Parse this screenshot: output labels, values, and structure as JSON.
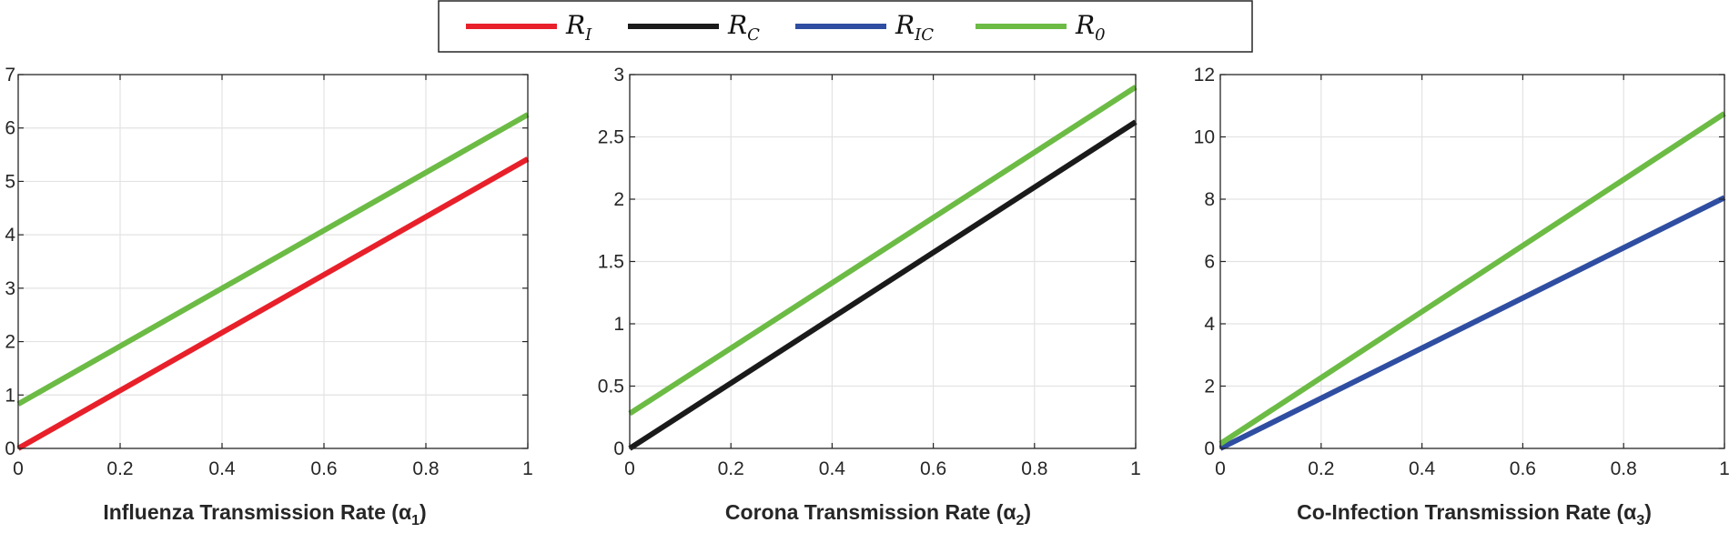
{
  "legend": {
    "entries": [
      {
        "key": "RI",
        "script": "R",
        "sub": "I",
        "color": "#e8202a"
      },
      {
        "key": "RC",
        "script": "R",
        "sub": "C",
        "color": "#1a1a1a"
      },
      {
        "key": "RIC",
        "script": "R",
        "sub": "IC",
        "color": "#2f4ea2"
      },
      {
        "key": "R0",
        "script": "R",
        "sub": "0",
        "color": "#6cbb45"
      }
    ]
  },
  "chart_data": [
    {
      "type": "line",
      "xlabel": "Influenza Transmission Rate (α",
      "xlabel_sub": "1",
      "xlabel_close": ")",
      "xlim": [
        0,
        1
      ],
      "ylim": [
        0,
        7
      ],
      "xticks": [
        0,
        0.2,
        0.4,
        0.6,
        0.8,
        1
      ],
      "xtick_labels": [
        "0",
        "0.2",
        "0.4",
        "0.6",
        "0.8",
        "1"
      ],
      "yticks": [
        0,
        1,
        2,
        3,
        4,
        5,
        6,
        7
      ],
      "ytick_labels": [
        "0",
        "1",
        "2",
        "3",
        "4",
        "5",
        "6",
        "7"
      ],
      "grid": true,
      "series": [
        {
          "name": "RI",
          "color": "#e8202a",
          "x": [
            0,
            1
          ],
          "y": [
            0,
            5.42
          ]
        },
        {
          "name": "R0",
          "color": "#6cbb45",
          "x": [
            0,
            1
          ],
          "y": [
            0.83,
            6.25
          ]
        }
      ]
    },
    {
      "type": "line",
      "xlabel": "Corona Transmission Rate (α",
      "xlabel_sub": "2",
      "xlabel_close": ")",
      "xlim": [
        0,
        1
      ],
      "ylim": [
        0,
        3
      ],
      "xticks": [
        0,
        0.2,
        0.4,
        0.6,
        0.8,
        1
      ],
      "xtick_labels": [
        "0",
        "0.2",
        "0.4",
        "0.6",
        "0.8",
        "1"
      ],
      "yticks": [
        0,
        0.5,
        1,
        1.5,
        2,
        2.5,
        3
      ],
      "ytick_labels": [
        "0",
        "0.5",
        "1",
        "1.5",
        "2",
        "2.5",
        "3"
      ],
      "grid": true,
      "series": [
        {
          "name": "RC",
          "color": "#1a1a1a",
          "x": [
            0,
            1
          ],
          "y": [
            0,
            2.62
          ]
        },
        {
          "name": "R0",
          "color": "#6cbb45",
          "x": [
            0,
            1
          ],
          "y": [
            0.28,
            2.9
          ]
        }
      ]
    },
    {
      "type": "line",
      "xlabel": "Co-Infection Transmission Rate (α",
      "xlabel_sub": "3",
      "xlabel_close": ")",
      "xlim": [
        0,
        1
      ],
      "ylim": [
        0,
        12
      ],
      "xticks": [
        0,
        0.2,
        0.4,
        0.6,
        0.8,
        1
      ],
      "xtick_labels": [
        "0",
        "0.2",
        "0.4",
        "0.6",
        "0.8",
        "1"
      ],
      "yticks": [
        0,
        2,
        4,
        6,
        8,
        10,
        12
      ],
      "ytick_labels": [
        "0",
        "2",
        "4",
        "6",
        "8",
        "10",
        "12"
      ],
      "grid": true,
      "series": [
        {
          "name": "RIC",
          "color": "#2f4ea2",
          "x": [
            0,
            1
          ],
          "y": [
            0,
            8.05
          ]
        },
        {
          "name": "R0",
          "color": "#6cbb45",
          "x": [
            0,
            1
          ],
          "y": [
            0.15,
            10.75
          ]
        }
      ]
    }
  ]
}
